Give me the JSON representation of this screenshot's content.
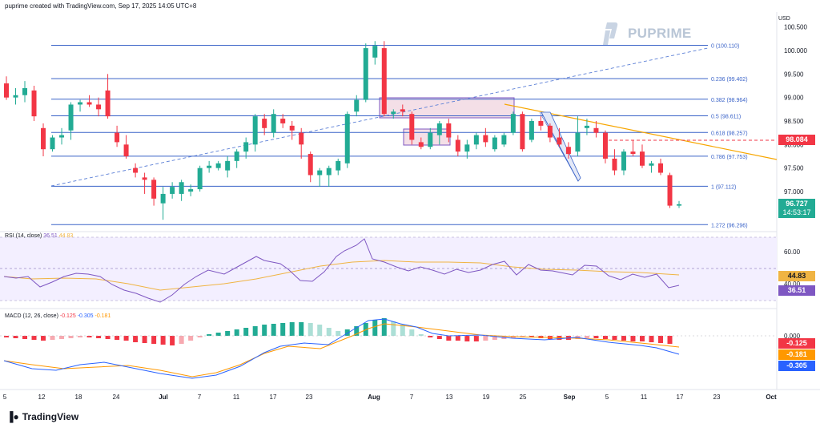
{
  "header": {
    "text": "puprime created with TradingView.com, Sep 17, 2025 14:05 UTC+8"
  },
  "brand": {
    "name": "PUPRIME"
  },
  "footer": {
    "logo_text": "TradingView"
  },
  "price_axis": {
    "currency": "USD",
    "ticks": [
      "100.500",
      "100.000",
      "99.500",
      "99.000",
      "98.500",
      "98.000",
      "97.500",
      "97.000"
    ],
    "tick_values": [
      100.5,
      100.0,
      99.5,
      99.0,
      98.5,
      98.0,
      97.5,
      97.0
    ]
  },
  "date_axis": {
    "labels": [
      "5",
      "12",
      "18",
      "24",
      "Jul",
      "7",
      "11",
      "17",
      "23",
      "Aug",
      "7",
      "13",
      "19",
      "25",
      "Sep",
      "5",
      "11",
      "17",
      "23",
      "Oct"
    ]
  },
  "fibonacci": [
    {
      "label": "0 (100.110)",
      "value": 100.11
    },
    {
      "label": "0.236 (99.402)",
      "value": 99.402
    },
    {
      "label": "0.382 (98.964)",
      "value": 98.964
    },
    {
      "label": "0.5 (98.611)",
      "value": 98.611
    },
    {
      "label": "0.618 (98.257)",
      "value": 98.257
    },
    {
      "label": "0.786 (97.753)",
      "value": 97.753
    },
    {
      "label": "1 (97.112)",
      "value": 97.112
    },
    {
      "label": "1.272 (96.296)",
      "value": 96.296
    }
  ],
  "price_badges": {
    "level": "98.084",
    "current": "96.727",
    "countdown": "14:53:17"
  },
  "rsi": {
    "title": "RSI (14, close)",
    "value": "36.51",
    "ma_value": "44.83",
    "ticks": [
      "60.00",
      "40.00"
    ]
  },
  "macd": {
    "title": "MACD (12, 26, close)",
    "histogram": "-0.125",
    "macd": "-0.305",
    "signal": "-0.181",
    "ticks": [
      "0.000"
    ]
  },
  "colors": {
    "up": "#22ab94",
    "down": "#f23645",
    "fib_line": "#3a63c8",
    "trendline": "#f7a600",
    "rsi": "#7e57c2",
    "rsi_ma": "#f0b443",
    "macd_line": "#2962ff",
    "signal_line": "#ff9800"
  },
  "chart_data": {
    "type": "candlestick",
    "title": "puprime created with TradingView.com, Sep 17, 2025 14:05 UTC+8",
    "ylabel": "USD",
    "ylim": [
      96.05,
      100.6
    ],
    "grid": false,
    "ohlc": [
      [
        99.3,
        99.45,
        98.95,
        99.0
      ],
      [
        99.0,
        99.2,
        98.85,
        99.05
      ],
      [
        99.05,
        99.35,
        98.9,
        99.2
      ],
      [
        99.15,
        99.25,
        98.5,
        98.6
      ],
      [
        98.35,
        98.45,
        97.75,
        97.9
      ],
      [
        97.9,
        98.2,
        97.85,
        98.15
      ],
      [
        98.15,
        98.35,
        98.0,
        98.2
      ],
      [
        98.3,
        98.9,
        98.1,
        98.85
      ],
      [
        98.85,
        98.95,
        98.7,
        98.9
      ],
      [
        98.9,
        99.05,
        98.8,
        98.85
      ],
      [
        98.85,
        99.0,
        98.6,
        98.75
      ],
      [
        99.15,
        99.5,
        98.55,
        98.6
      ],
      [
        98.25,
        98.4,
        97.95,
        98.05
      ],
      [
        98.0,
        98.2,
        97.7,
        97.75
      ],
      [
        97.5,
        97.6,
        97.3,
        97.4
      ],
      [
        97.3,
        97.4,
        96.95,
        97.25
      ],
      [
        97.25,
        97.3,
        96.7,
        96.85
      ],
      [
        96.75,
        97.1,
        96.4,
        96.95
      ],
      [
        96.95,
        97.2,
        96.85,
        97.1
      ],
      [
        96.95,
        97.25,
        96.8,
        97.2
      ],
      [
        97.0,
        97.15,
        96.9,
        97.05
      ],
      [
        97.05,
        97.55,
        97.0,
        97.5
      ],
      [
        97.5,
        97.65,
        97.4,
        97.55
      ],
      [
        97.5,
        97.65,
        97.45,
        97.6
      ],
      [
        97.45,
        97.75,
        97.3,
        97.65
      ],
      [
        97.65,
        97.9,
        97.5,
        97.85
      ],
      [
        97.85,
        98.15,
        97.7,
        98.05
      ],
      [
        98.0,
        98.65,
        97.85,
        98.6
      ],
      [
        98.55,
        98.65,
        98.2,
        98.35
      ],
      [
        98.25,
        98.75,
        98.15,
        98.65
      ],
      [
        98.55,
        98.65,
        98.35,
        98.45
      ],
      [
        98.4,
        98.5,
        98.1,
        98.3
      ],
      [
        98.25,
        98.35,
        97.7,
        98.0
      ],
      [
        97.8,
        97.85,
        97.2,
        97.35
      ],
      [
        97.35,
        97.5,
        97.1,
        97.45
      ],
      [
        97.35,
        97.55,
        97.1,
        97.5
      ],
      [
        97.45,
        97.7,
        97.35,
        97.65
      ],
      [
        97.6,
        98.7,
        97.5,
        98.65
      ],
      [
        98.7,
        99.05,
        98.6,
        98.95
      ],
      [
        98.95,
        100.15,
        98.9,
        100.05
      ],
      [
        99.85,
        100.2,
        99.7,
        100.1
      ],
      [
        100.05,
        100.2,
        98.6,
        98.65
      ],
      [
        98.65,
        98.75,
        98.55,
        98.7
      ],
      [
        98.75,
        98.85,
        98.6,
        98.7
      ],
      [
        98.65,
        98.7,
        98.0,
        98.1
      ],
      [
        98.05,
        98.15,
        97.9,
        97.95
      ],
      [
        97.95,
        98.35,
        97.9,
        98.25
      ],
      [
        98.2,
        98.5,
        98.0,
        98.45
      ],
      [
        98.45,
        98.55,
        98.05,
        98.15
      ],
      [
        98.1,
        98.2,
        97.75,
        97.85
      ],
      [
        97.85,
        98.1,
        97.7,
        98.0
      ],
      [
        98.0,
        98.25,
        97.9,
        98.2
      ],
      [
        98.2,
        98.35,
        97.95,
        98.05
      ],
      [
        97.9,
        98.2,
        97.85,
        98.15
      ],
      [
        98.0,
        98.25,
        97.95,
        98.2
      ],
      [
        98.25,
        98.7,
        98.2,
        98.65
      ],
      [
        98.65,
        98.7,
        97.85,
        97.9
      ],
      [
        98.1,
        98.55,
        98.05,
        98.5
      ],
      [
        98.5,
        98.6,
        98.3,
        98.4
      ],
      [
        98.4,
        98.45,
        98.05,
        98.15
      ],
      [
        98.15,
        98.35,
        97.95,
        98.0
      ],
      [
        97.95,
        98.05,
        97.7,
        97.8
      ],
      [
        97.85,
        98.6,
        97.75,
        98.25
      ],
      [
        98.35,
        98.55,
        98.2,
        98.4
      ],
      [
        98.35,
        98.5,
        98.15,
        98.25
      ],
      [
        98.25,
        98.3,
        97.6,
        97.7
      ],
      [
        97.7,
        97.9,
        97.35,
        97.45
      ],
      [
        97.45,
        97.9,
        97.35,
        97.85
      ],
      [
        97.85,
        98.1,
        97.75,
        97.8
      ],
      [
        97.85,
        98.0,
        97.5,
        97.55
      ],
      [
        97.55,
        97.65,
        97.4,
        97.6
      ],
      [
        97.6,
        97.7,
        97.35,
        97.4
      ],
      [
        97.35,
        97.4,
        96.65,
        96.7
      ],
      [
        96.7,
        96.8,
        96.65,
        96.73
      ]
    ]
  }
}
